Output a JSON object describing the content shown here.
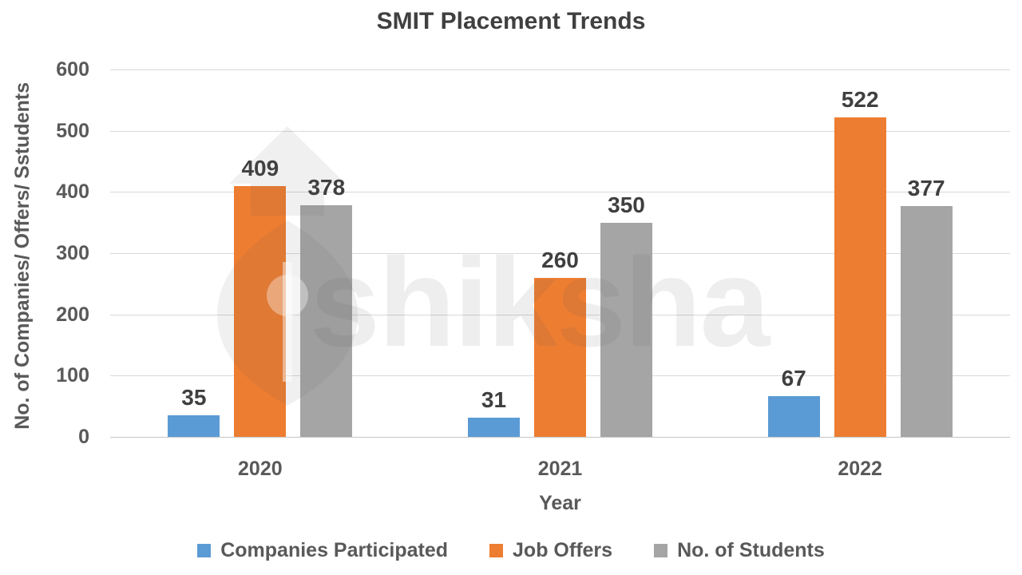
{
  "watermark": {
    "text": "shiksha"
  },
  "chart_data": {
    "type": "bar",
    "title": "SMIT Placement Trends",
    "xlabel": "Year",
    "ylabel": "No. of Companies/ Offers/ Sstudents",
    "categories": [
      "2020",
      "2021",
      "2022"
    ],
    "series": [
      {
        "name": "Companies Participated",
        "color": "#5B9BD5",
        "values": [
          35,
          31,
          67
        ]
      },
      {
        "name": "Job Offers",
        "color": "#ED7D31",
        "values": [
          409,
          260,
          522
        ]
      },
      {
        "name": "No. of Students",
        "color": "#A5A5A5",
        "values": [
          378,
          350,
          377
        ]
      }
    ],
    "ylim": [
      0,
      600
    ],
    "ytick_step": 100,
    "grid": true,
    "legend_position": "bottom"
  },
  "colors": {
    "grid": "#D9D9D9",
    "axis_text": "#595959",
    "title_text": "#404040",
    "data_label_text": "#3F3F3F"
  }
}
